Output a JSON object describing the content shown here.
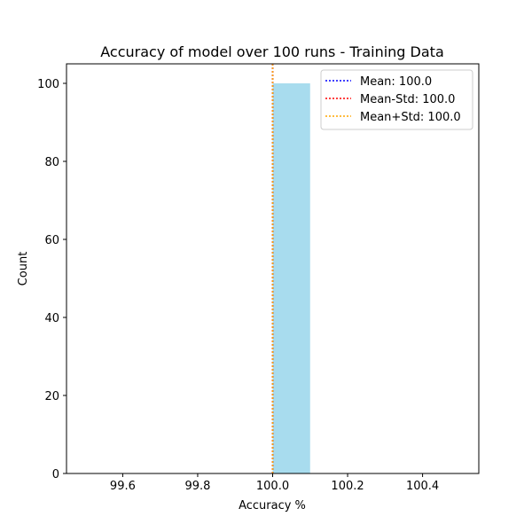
{
  "chart_data": {
    "type": "histogram",
    "title": "Accuracy of model over 100 runs - Training Data",
    "xlabel": "Accuracy %",
    "ylabel": "Count",
    "xlim": [
      99.45,
      100.55
    ],
    "ylim": [
      0,
      105
    ],
    "xticks": [
      99.6,
      99.8,
      100.0,
      100.2,
      100.4
    ],
    "xtick_labels": [
      "99.6",
      "99.8",
      "100.0",
      "100.2",
      "100.4"
    ],
    "yticks": [
      0,
      20,
      40,
      60,
      80,
      100
    ],
    "ytick_labels": [
      "0",
      "20",
      "40",
      "60",
      "80",
      "100"
    ],
    "bars": [
      {
        "x0": 100.0,
        "x1": 100.1,
        "count": 100
      }
    ],
    "bar_color": "#a8dcee",
    "vlines": [
      {
        "label": "Mean: 100.0",
        "x": 100.0,
        "color": "#0000ff",
        "style": "dotted"
      },
      {
        "label": "Mean-Std: 100.0",
        "x": 100.0,
        "color": "#ff0000",
        "style": "dotted"
      },
      {
        "label": "Mean+Std: 100.0",
        "x": 100.0,
        "color": "#ffa500",
        "style": "dotted"
      }
    ],
    "legend_position": "top-right",
    "grid": false
  }
}
